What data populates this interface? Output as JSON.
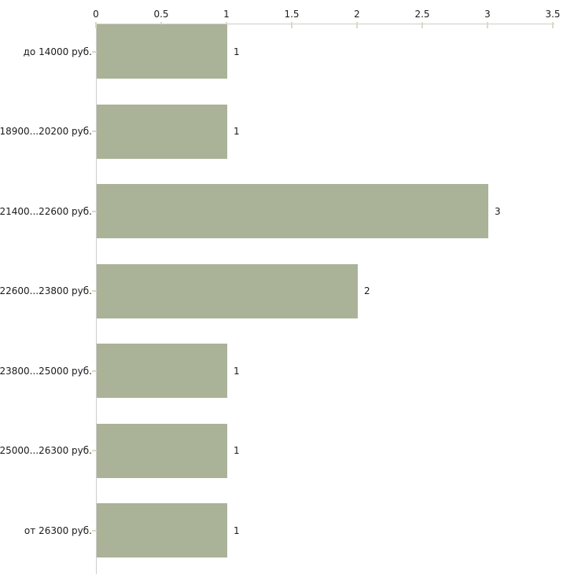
{
  "chart_data": {
    "type": "bar",
    "orientation": "horizontal",
    "title": "",
    "xlabel": "",
    "ylabel": "",
    "categories": [
      "до 14000 руб.",
      "18900...20200 руб.",
      "21400...22600 руб.",
      "22600...23800 руб.",
      "23800...25000 руб.",
      "25000...26300 руб.",
      "от 26300 руб."
    ],
    "values": [
      1,
      1,
      3,
      2,
      1,
      1,
      1
    ],
    "value_labels": [
      "1",
      "1",
      "3",
      "2",
      "1",
      "1",
      "1"
    ],
    "xlim": [
      0,
      3.5
    ],
    "x_ticks": [
      0,
      0.5,
      1,
      1.5,
      2,
      2.5,
      3,
      3.5
    ],
    "x_tick_labels": [
      "0",
      "0.5",
      "1",
      "1.5",
      "2",
      "2.5",
      "3",
      "3.5"
    ],
    "x_axis_position": "top",
    "grid": false,
    "legend": null,
    "colors": {
      "bar": "#aab298",
      "axis": "#cccccc",
      "tick": "#d9dcc3",
      "text": "#1a1a1a",
      "background": "#ffffff"
    }
  }
}
